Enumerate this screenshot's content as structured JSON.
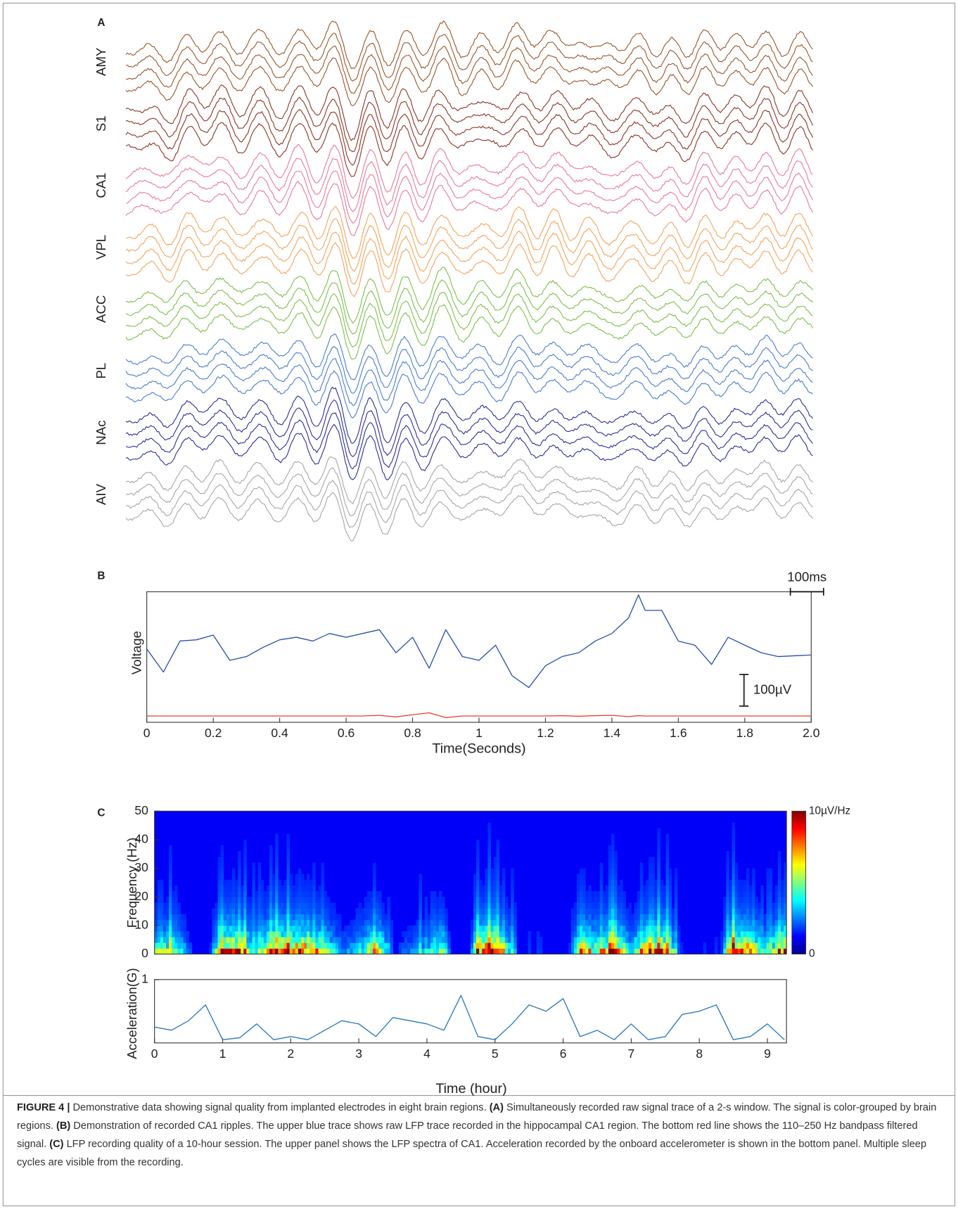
{
  "panels": [
    "A",
    "B",
    "C"
  ],
  "chart_data": [
    {
      "type": "traces",
      "series": [
        {
          "name": "AMY",
          "color": "#9a5428"
        },
        {
          "name": "S1",
          "color": "#8a3424"
        },
        {
          "name": "CA1",
          "color": "#e87a98"
        },
        {
          "name": "VPL",
          "color": "#f3a45a"
        },
        {
          "name": "ACC",
          "color": "#7cbf4a"
        },
        {
          "name": "PL",
          "color": "#4a7ccc"
        },
        {
          "name": "NAc",
          "color": "#2c2c96"
        },
        {
          "name": "AIV",
          "color": "#a6a6a6"
        }
      ]
    },
    {
      "type": "line",
      "xlabel": "Time(Seconds)",
      "ylabel": "Voltage",
      "xlim": [
        0,
        2
      ],
      "ylim": [
        -220,
        193
      ],
      "xticks": [
        0,
        0.2,
        0.4,
        0.6,
        0.8,
        1,
        1.2,
        1.4,
        1.6,
        1.8,
        {
          "value": 2,
          "label": "2.0"
        }
      ],
      "x": [
        0,
        0.05,
        0.1,
        0.15,
        0.2,
        0.25,
        0.3,
        0.35,
        0.4,
        0.45,
        0.5,
        0.55,
        0.6,
        0.65,
        0.7,
        0.75,
        0.8,
        0.85,
        0.9,
        0.95,
        1,
        1.05,
        1.1,
        1.15,
        1.2,
        1.25,
        1.3,
        1.35,
        1.4,
        1.45,
        1.48,
        1.5,
        1.55,
        1.6,
        1.65,
        1.7,
        1.75,
        1.8,
        1.85,
        1.9,
        2
      ],
      "series": [
        {
          "color": "#2a4fa8",
          "values": [
            12,
            -61,
            37,
            41,
            56,
            -24,
            -12,
            17,
            41,
            49,
            37,
            61,
            49,
            61,
            73,
            0,
            49,
            -49,
            73,
            -12,
            -24,
            24,
            -73,
            -110,
            -41,
            -12,
            0,
            37,
            61,
            110,
            183,
            134,
            134,
            37,
            24,
            -37,
            49,
            24,
            0,
            -12,
            -7
          ]
        },
        {
          "color": "#e8402a",
          "values": [
            -200,
            -200,
            -200,
            -200,
            -200,
            -200,
            -200,
            -200,
            -200,
            -200,
            -200,
            -200,
            -200,
            -200,
            -198,
            -203,
            -196,
            -190,
            -205,
            -200,
            -200,
            -200,
            -200,
            -200,
            -200,
            -199,
            -201,
            -199,
            -198,
            -202,
            -199,
            -200,
            -200,
            -200,
            -200,
            -200,
            -200,
            -200,
            -200,
            -200,
            -200
          ]
        }
      ],
      "scale_bars": [
        {
          "label": "100µV",
          "value": 100,
          "axis": "y"
        },
        {
          "label": "100ms",
          "value": 0.1,
          "axis": "x"
        }
      ]
    },
    {
      "type": "spectrogram",
      "ylabel": "Frequency (Hz)",
      "xlim": [
        0,
        9.28
      ],
      "ylim": [
        0,
        50
      ],
      "yticks": [
        0,
        10,
        20,
        30,
        40,
        50
      ],
      "clim": [
        0,
        10
      ],
      "colorbar_ticks": [
        0,
        {
          "value": 10,
          "label": "10µV/Hz"
        }
      ]
    },
    {
      "type": "line",
      "xlabel": "Time (hour)",
      "ylabel": "Acceleration(G)",
      "xlim": [
        0,
        9.28
      ],
      "ylim": [
        0,
        1
      ],
      "yticks": [
        1
      ],
      "xticks": [
        0,
        1,
        2,
        3,
        4,
        5,
        6,
        7,
        8,
        9
      ],
      "x": [
        0,
        0.25,
        0.5,
        0.75,
        1,
        1.25,
        1.5,
        1.75,
        2,
        2.25,
        2.5,
        2.75,
        3,
        3.25,
        3.5,
        3.75,
        4,
        4.25,
        4.5,
        4.75,
        5,
        5.25,
        5.5,
        5.75,
        6,
        6.25,
        6.5,
        6.75,
        7,
        7.25,
        7.5,
        7.75,
        8,
        8.25,
        8.5,
        8.75,
        9,
        9.25
      ],
      "series": [
        {
          "color": "#2a78b8",
          "values": [
            0.25,
            0.2,
            0.35,
            0.6,
            0.05,
            0.08,
            0.3,
            0.05,
            0.1,
            0.05,
            0.2,
            0.35,
            0.3,
            0.1,
            0.4,
            0.35,
            0.3,
            0.2,
            0.75,
            0.1,
            0.05,
            0.3,
            0.6,
            0.5,
            0.7,
            0.1,
            0.2,
            0.05,
            0.3,
            0.05,
            0.1,
            0.45,
            0.5,
            0.6,
            0.05,
            0.1,
            0.3,
            0.05
          ]
        }
      ]
    }
  ],
  "caption": {
    "parts": [
      {
        "text": "FIGURE 4 |",
        "bold": true
      },
      {
        "text": " Demonstrative data showing signal quality from implanted electrodes in eight brain regions. ",
        "bold": false
      },
      {
        "text": "(A)",
        "bold": true
      },
      {
        "text": " Simultaneously recorded raw signal trace of a 2-s window. The signal is color-grouped by brain regions. ",
        "bold": false
      },
      {
        "text": "(B)",
        "bold": true
      },
      {
        "text": " Demonstration of recorded CA1 ripples. The upper blue trace shows raw LFP trace recorded in the hippocampal CA1 region. The bottom red line shows the 110–250 Hz bandpass filtered signal. ",
        "bold": false
      },
      {
        "text": "(C)",
        "bold": true
      },
      {
        "text": " LFP recording quality of a 10-hour session. The upper panel shows the LFP spectra of CA1. Acceleration recorded by the onboard accelerometer is shown in the bottom panel. Multiple sleep cycles are visible from the recording.",
        "bold": false
      }
    ]
  }
}
